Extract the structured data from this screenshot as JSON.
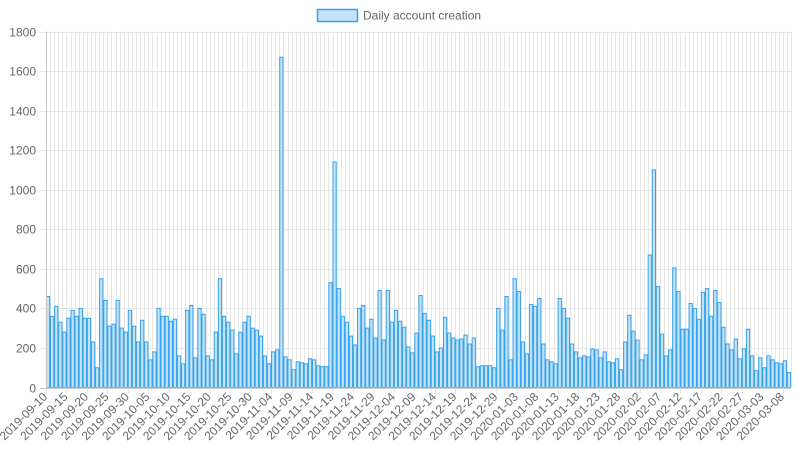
{
  "chart_data": {
    "type": "bar",
    "title": "",
    "xlabel": "",
    "ylabel": "",
    "ylim": [
      0,
      1800
    ],
    "yticks": [
      0,
      200,
      400,
      600,
      800,
      1000,
      1200,
      1400,
      1600,
      1800
    ],
    "grid": true,
    "legend_position": "top-center",
    "start_date": "2019-09-10",
    "x_tick_labels": [
      "2019-09-10",
      "2019-09-15",
      "2019-09-20",
      "2019-09-25",
      "2019-09-30",
      "2019-10-05",
      "2019-10-10",
      "2019-10-15",
      "2019-10-20",
      "2019-10-25",
      "2019-10-30",
      "2019-11-04",
      "2019-11-09",
      "2019-11-14",
      "2019-11-19",
      "2019-11-24",
      "2019-11-29",
      "2019-12-04",
      "2019-12-09",
      "2019-12-14",
      "2019-12-19",
      "2019-12-24",
      "2019-12-29",
      "2020-01-03",
      "2020-01-08",
      "2020-01-13",
      "2020-01-18",
      "2020-01-23",
      "2020-01-28",
      "2020-02-02",
      "2020-02-07",
      "2020-02-12",
      "2020-02-17",
      "2020-02-22",
      "2020-02-27",
      "2020-03-03",
      "2020-03-08"
    ],
    "series": [
      {
        "name": "Daily account creation",
        "fill_color": "#c4e3f7",
        "border_color": "#36a2eb",
        "values": [
          460,
          360,
          410,
          330,
          280,
          350,
          390,
          360,
          400,
          350,
          350,
          230,
          100,
          550,
          440,
          310,
          320,
          440,
          300,
          280,
          390,
          310,
          230,
          340,
          230,
          140,
          180,
          400,
          360,
          360,
          335,
          345,
          160,
          120,
          390,
          415,
          150,
          400,
          370,
          160,
          140,
          280,
          550,
          360,
          330,
          290,
          170,
          280,
          330,
          360,
          300,
          290,
          260,
          160,
          120,
          180,
          190,
          1670,
          155,
          140,
          90,
          130,
          125,
          120,
          145,
          140,
          110,
          105,
          105,
          530,
          1140,
          500,
          360,
          330,
          260,
          215,
          400,
          415,
          300,
          345,
          250,
          490,
          240,
          490,
          330,
          390,
          335,
          305,
          205,
          175,
          275,
          465,
          375,
          340,
          260,
          180,
          200,
          355,
          275,
          250,
          240,
          245,
          265,
          220,
          250,
          105,
          110,
          110,
          110,
          100,
          400,
          290,
          460,
          140,
          550,
          485,
          230,
          170,
          420,
          410,
          450,
          220,
          140,
          130,
          120,
          450,
          400,
          350,
          220,
          180,
          150,
          160,
          155,
          195,
          190,
          150,
          180,
          130,
          125,
          145,
          90,
          230,
          365,
          285,
          240,
          140,
          165,
          670,
          1100,
          510,
          270,
          160,
          190,
          605,
          485,
          295,
          295,
          425,
          400,
          345,
          480,
          500,
          360,
          490,
          430,
          305,
          220,
          190,
          245,
          145,
          195,
          295,
          160,
          85,
          150,
          100,
          160,
          140,
          125,
          120,
          135,
          75
        ]
      }
    ]
  }
}
